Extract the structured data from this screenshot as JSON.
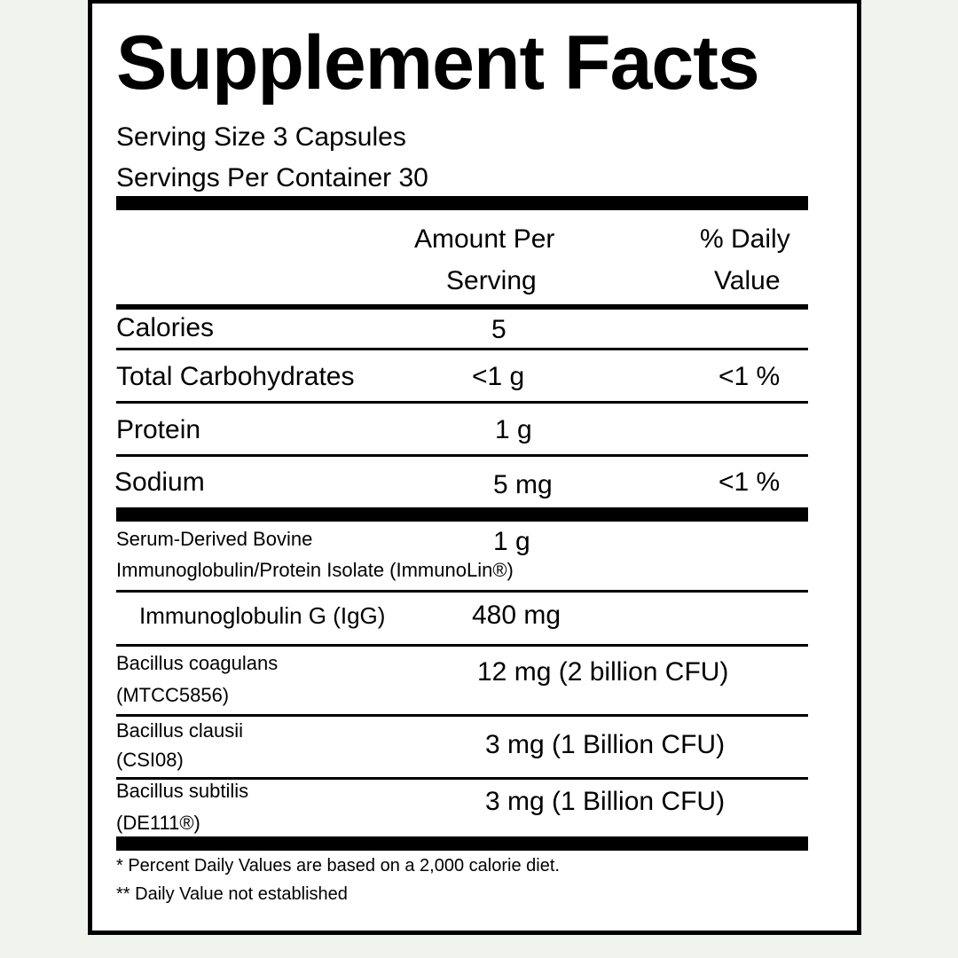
{
  "title": "Supplement Facts",
  "serving_size": "Serving Size 3 Capsules",
  "servings_per_container": "Servings Per Container 30",
  "header": {
    "amount_line1": "Amount Per",
    "amount_line2": "Serving",
    "dv_line1": "% Daily",
    "dv_line2": "Value"
  },
  "nutrients": [
    {
      "name": "Calories",
      "amount": "5",
      "dv": ""
    },
    {
      "name": "Total Carbohydrates",
      "amount": "<1 g",
      "dv": "<1 %"
    },
    {
      "name": "Protein",
      "amount": "1 g",
      "dv": ""
    },
    {
      "name": "Sodium",
      "amount": "5 mg",
      "dv": "<1 %"
    }
  ],
  "ingredients": [
    {
      "name_line1": "Serum-Derived Bovine",
      "name_line2": "Immunoglobulin/Protein Isolate (ImmunoLin®)",
      "amount": "1 g"
    },
    {
      "name_line1": "Immunoglobulin G (IgG)",
      "amount": "480 mg"
    },
    {
      "name_line1": "Bacillus coagulans",
      "name_line2": "(MTCC5856)",
      "amount": "12 mg (2 billion CFU)"
    },
    {
      "name_line1": "Bacillus clausii",
      "name_line2": "(CSI08)",
      "amount": "3 mg (1 Billion CFU)"
    },
    {
      "name_line1": "Bacillus subtilis",
      "name_line2": "(DE111®)",
      "amount": "3 mg (1 Billion CFU)"
    }
  ],
  "footnotes": [
    "* Percent Daily Values are based on a 2,000 calorie diet.",
    "** Daily Value not established"
  ]
}
